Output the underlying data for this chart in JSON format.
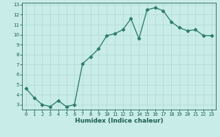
{
  "xlabel": "Humidex (Indice chaleur)",
  "ylabel": "",
  "x": [
    0,
    1,
    2,
    3,
    4,
    5,
    6,
    7,
    8,
    9,
    10,
    11,
    12,
    13,
    14,
    15,
    16,
    17,
    18,
    19,
    20,
    21,
    22,
    23
  ],
  "y": [
    4.6,
    3.7,
    3.0,
    2.8,
    3.4,
    2.8,
    3.0,
    7.1,
    7.8,
    8.6,
    9.9,
    10.1,
    10.5,
    11.6,
    9.6,
    12.5,
    12.7,
    12.4,
    11.3,
    10.7,
    10.4,
    10.5,
    9.9,
    9.9
  ],
  "line_color": "#2e7d6e",
  "marker": "D",
  "marker_size": 2.2,
  "line_width": 1.0,
  "bg_color": "#c8ece8",
  "grid_color": "#b0d8d4",
  "tick_label_color": "#1a5c50",
  "xlabel_color": "#1a5c50",
  "xlim": [
    -0.5,
    23.5
  ],
  "ylim": [
    2.5,
    13.2
  ],
  "yticks": [
    3,
    4,
    5,
    6,
    7,
    8,
    9,
    10,
    11,
    12,
    13
  ],
  "xticks": [
    0,
    1,
    2,
    3,
    4,
    5,
    6,
    7,
    8,
    9,
    10,
    11,
    12,
    13,
    14,
    15,
    16,
    17,
    18,
    19,
    20,
    21,
    22,
    23
  ],
  "tick_fontsize": 5.0,
  "xlabel_fontsize": 6.5
}
